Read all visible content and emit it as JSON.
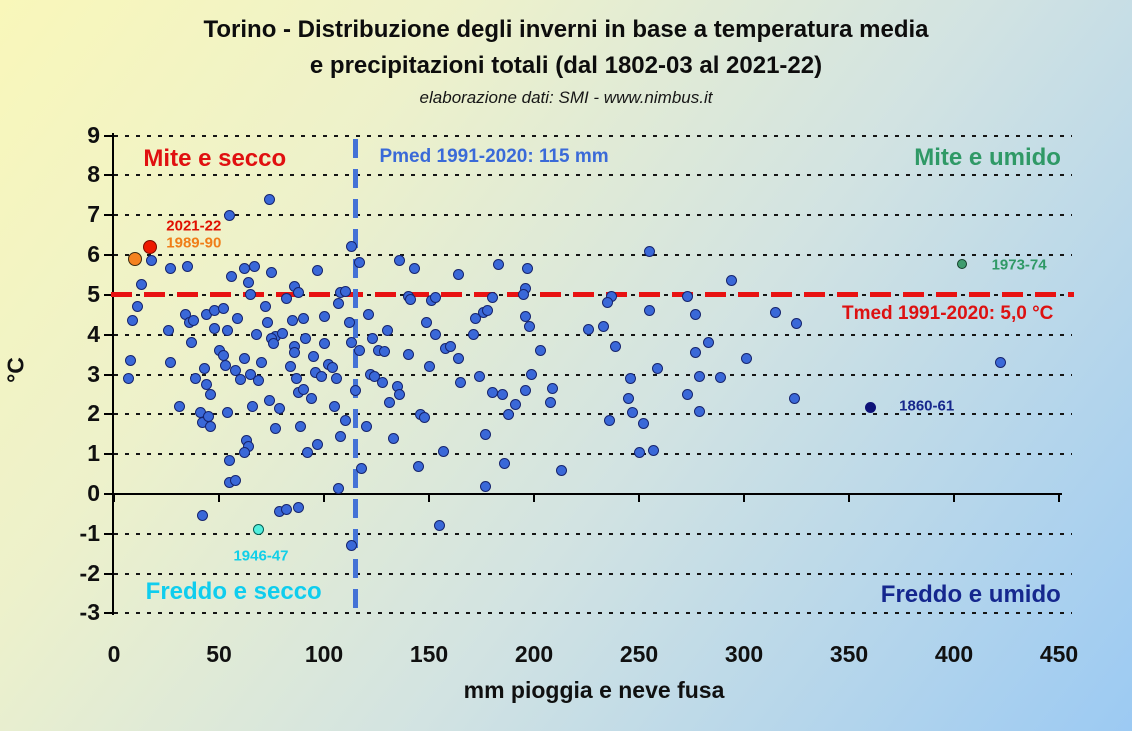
{
  "header": {
    "title_line1": "Torino - Distribuzione degli inverni in base a temperatura media",
    "title_line2": "e precipitazioni totali (dal 1802-03 al 2021-22)",
    "subtitle": "elaborazione dati: SMI - www.nimbus.it"
  },
  "chart_data": {
    "type": "scatter",
    "xlabel": "mm pioggia e neve fusa",
    "ylabel": "°C",
    "xlim": [
      0,
      450
    ],
    "ylim": [
      -3,
      9
    ],
    "x_ticks": [
      0,
      50,
      100,
      150,
      200,
      250,
      300,
      350,
      400,
      450
    ],
    "y_ticks": [
      9,
      8,
      7,
      6,
      5,
      4,
      3,
      2,
      1,
      0,
      -1,
      -2,
      -3
    ],
    "grid": "horizontal-dotted-black",
    "legend": "none",
    "reference_lines": [
      {
        "axis": "y",
        "value": 5.0,
        "style": "dashed",
        "color": "#e81212",
        "label": "Tmed 1991-2020: 5,0 °C",
        "label_at": [
          397,
          4.53
        ],
        "label_color": "#dd1111"
      },
      {
        "axis": "x",
        "value": 115,
        "style": "dashed",
        "color": "#4472d6",
        "label": "Pmed 1991-2020: 115 mm",
        "label_at": [
          181,
          8.46
        ],
        "label_color": "#3a6ad8"
      }
    ],
    "quadrant_labels": [
      {
        "text": "Mite e secco",
        "at": [
          48,
          8.42
        ],
        "color": "#e01010"
      },
      {
        "text": "Mite e umido",
        "at": [
          416,
          8.44
        ],
        "color": "#2f9966"
      },
      {
        "text": "Freddo e secco",
        "at": [
          57,
          -2.46
        ],
        "color": "#0fcdee"
      },
      {
        "text": "Freddo e umido",
        "at": [
          408,
          -2.54
        ],
        "color": "#15278e"
      }
    ],
    "series": [
      {
        "name": "Inverni 1802-03 / 2021-22 (Torino)",
        "marker": {
          "fill": "#3a68d8",
          "stroke": "#16246e",
          "r": 5.5
        },
        "points": [
          [
            74,
            7.4
          ],
          [
            55,
            7.0
          ],
          [
            18,
            5.85
          ],
          [
            13,
            5.25
          ],
          [
            27,
            5.65
          ],
          [
            35,
            5.7
          ],
          [
            56,
            5.45
          ],
          [
            62,
            5.65
          ],
          [
            64,
            5.3
          ],
          [
            67,
            5.7
          ],
          [
            75,
            5.55
          ],
          [
            86,
            5.2
          ],
          [
            88,
            5.05
          ],
          [
            97,
            5.6
          ],
          [
            108,
            5.05
          ],
          [
            113,
            6.22
          ],
          [
            117,
            5.8
          ],
          [
            136,
            5.85
          ],
          [
            143,
            5.65
          ],
          [
            164,
            5.5
          ],
          [
            183,
            5.75
          ],
          [
            196,
            5.15
          ],
          [
            197,
            5.65
          ],
          [
            255,
            6.1
          ],
          [
            294,
            5.35
          ],
          [
            110,
            5.08
          ],
          [
            195,
            5.0
          ],
          [
            65,
            5.0
          ],
          [
            82,
            4.9
          ],
          [
            107,
            4.78
          ],
          [
            140,
            4.95
          ],
          [
            141,
            4.88
          ],
          [
            151,
            4.85
          ],
          [
            153,
            4.93
          ],
          [
            180,
            4.93
          ],
          [
            237,
            4.95
          ],
          [
            273,
            4.97
          ],
          [
            235,
            4.82
          ],
          [
            11,
            4.7
          ],
          [
            9,
            4.35
          ],
          [
            26,
            4.1
          ],
          [
            34,
            4.5
          ],
          [
            36,
            4.3
          ],
          [
            38,
            4.35
          ],
          [
            44,
            4.5
          ],
          [
            48,
            4.6
          ],
          [
            48,
            4.15
          ],
          [
            52,
            4.65
          ],
          [
            54,
            4.1
          ],
          [
            59,
            4.4
          ],
          [
            68,
            4.0
          ],
          [
            72,
            4.7
          ],
          [
            73,
            4.3
          ],
          [
            77,
            3.95
          ],
          [
            80,
            4.02
          ],
          [
            85,
            4.35
          ],
          [
            90,
            4.4
          ],
          [
            100,
            4.45
          ],
          [
            112,
            4.3
          ],
          [
            121,
            4.5
          ],
          [
            130,
            4.1
          ],
          [
            149,
            4.3
          ],
          [
            153,
            4.0
          ],
          [
            171,
            4.0
          ],
          [
            172,
            4.4
          ],
          [
            176,
            4.55
          ],
          [
            178,
            4.6
          ],
          [
            196,
            4.45
          ],
          [
            198,
            4.2
          ],
          [
            226,
            4.12
          ],
          [
            233,
            4.2
          ],
          [
            255,
            4.6
          ],
          [
            277,
            4.5
          ],
          [
            315,
            4.55
          ],
          [
            325,
            4.27
          ],
          [
            8,
            3.35
          ],
          [
            27,
            3.3
          ],
          [
            37,
            3.8
          ],
          [
            43,
            3.15
          ],
          [
            50,
            3.6
          ],
          [
            52,
            3.47
          ],
          [
            53,
            3.22
          ],
          [
            58,
            3.1
          ],
          [
            62,
            3.4
          ],
          [
            65,
            3.0
          ],
          [
            70,
            3.3
          ],
          [
            75,
            3.9
          ],
          [
            76,
            3.78
          ],
          [
            84,
            3.2
          ],
          [
            86,
            3.7
          ],
          [
            86,
            3.55
          ],
          [
            91,
            3.9
          ],
          [
            95,
            3.45
          ],
          [
            96,
            3.05
          ],
          [
            99,
            2.95
          ],
          [
            100,
            3.77
          ],
          [
            102,
            3.25
          ],
          [
            104,
            3.18
          ],
          [
            113,
            3.8
          ],
          [
            117,
            3.6
          ],
          [
            123,
            3.9
          ],
          [
            126,
            3.6
          ],
          [
            129,
            3.57
          ],
          [
            122,
            3.0
          ],
          [
            140,
            3.5
          ],
          [
            150,
            3.2
          ],
          [
            158,
            3.65
          ],
          [
            160,
            3.7
          ],
          [
            164,
            3.4
          ],
          [
            199,
            3.0
          ],
          [
            203,
            3.6
          ],
          [
            239,
            3.7
          ],
          [
            259,
            3.15
          ],
          [
            277,
            3.55
          ],
          [
            283,
            3.8
          ],
          [
            301,
            3.4
          ],
          [
            422,
            3.3
          ],
          [
            7,
            2.9
          ],
          [
            39,
            2.9
          ],
          [
            44,
            2.75
          ],
          [
            46,
            2.5
          ],
          [
            60,
            2.88
          ],
          [
            69,
            2.85
          ],
          [
            87,
            2.9
          ],
          [
            88,
            2.55
          ],
          [
            90,
            2.62
          ],
          [
            106,
            2.9
          ],
          [
            124,
            2.95
          ],
          [
            128,
            2.8
          ],
          [
            135,
            2.7
          ],
          [
            136,
            2.5
          ],
          [
            174,
            2.95
          ],
          [
            180,
            2.55
          ],
          [
            185,
            2.5
          ],
          [
            191,
            2.25
          ],
          [
            196,
            2.6
          ],
          [
            209,
            2.65
          ],
          [
            208,
            2.3
          ],
          [
            246,
            2.9
          ],
          [
            273,
            2.5
          ],
          [
            279,
            2.95
          ],
          [
            289,
            2.93
          ],
          [
            245,
            2.4
          ],
          [
            324,
            2.4
          ],
          [
            31,
            2.2
          ],
          [
            41,
            2.05
          ],
          [
            54,
            2.05
          ],
          [
            66,
            2.2
          ],
          [
            74,
            2.35
          ],
          [
            79,
            2.15
          ],
          [
            94,
            2.4
          ],
          [
            105,
            2.2
          ],
          [
            115,
            2.6
          ],
          [
            131,
            2.3
          ],
          [
            146,
            2.0
          ],
          [
            165,
            2.8
          ],
          [
            188,
            2.0
          ],
          [
            247,
            2.05
          ],
          [
            279,
            2.07
          ],
          [
            42,
            1.8
          ],
          [
            45,
            1.95
          ],
          [
            46,
            1.7
          ],
          [
            77,
            1.65
          ],
          [
            89,
            1.7
          ],
          [
            108,
            1.45
          ],
          [
            110,
            1.85
          ],
          [
            120,
            1.7
          ],
          [
            133,
            1.4
          ],
          [
            148,
            1.92
          ],
          [
            177,
            1.5
          ],
          [
            236,
            1.85
          ],
          [
            252,
            1.78
          ],
          [
            63,
            1.35
          ],
          [
            64,
            1.2
          ],
          [
            62,
            1.05
          ],
          [
            92,
            1.05
          ],
          [
            97,
            1.25
          ],
          [
            250,
            1.03
          ],
          [
            257,
            1.1
          ],
          [
            157,
            1.07
          ],
          [
            55,
            0.85
          ],
          [
            55,
            0.3
          ],
          [
            58,
            0.33
          ],
          [
            107,
            0.15
          ],
          [
            118,
            0.65
          ],
          [
            145,
            0.7
          ],
          [
            177,
            0.2
          ],
          [
            186,
            0.76
          ],
          [
            213,
            0.6
          ],
          [
            42,
            -0.55
          ],
          [
            79,
            -0.45
          ],
          [
            82,
            -0.4
          ],
          [
            88,
            -0.35
          ],
          [
            113,
            -1.3
          ],
          [
            155,
            -0.8
          ]
        ]
      }
    ],
    "highlighted_points": [
      {
        "label": "2021-22",
        "point": [
          17,
          6.2
        ],
        "fill": "#ee1a00",
        "stroke": "#7a0c00",
        "r": 7,
        "label_color": "#e01000",
        "label_at": [
          38,
          6.72
        ]
      },
      {
        "label": "1989-90",
        "point": [
          10,
          5.9
        ],
        "fill": "#f58220",
        "stroke": "#3a2a10",
        "r": 7,
        "label_color": "#f07d18",
        "label_at": [
          38,
          6.3
        ]
      },
      {
        "label": "1973-74",
        "point": [
          404,
          5.78
        ],
        "fill": "#3f9c6e",
        "stroke": "#123f28",
        "r": 5,
        "label_color": "#2f9966",
        "label_at": [
          431,
          5.76
        ]
      },
      {
        "label": "1860-61",
        "point": [
          360,
          2.18
        ],
        "fill": "#0e1278",
        "stroke": "#0e1278",
        "r": 5.5,
        "label_color": "#16278c",
        "label_at": [
          387,
          2.2
        ]
      },
      {
        "label": "1946-47",
        "point": [
          69,
          -0.9
        ],
        "fill": "#52efdd",
        "stroke": "#045f55",
        "r": 5.5,
        "label_color": "#11cfe8",
        "label_at": [
          70,
          -1.56
        ]
      }
    ]
  }
}
